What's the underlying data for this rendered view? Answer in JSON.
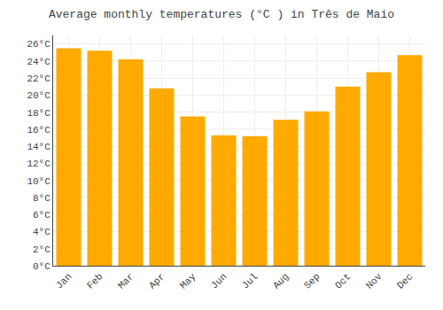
{
  "chart_data": {
    "type": "bar",
    "title": "Average monthly temperatures (°C ) in Três de Maio",
    "categories": [
      "Jan",
      "Feb",
      "Mar",
      "Apr",
      "May",
      "Jun",
      "Jul",
      "Aug",
      "Sep",
      "Oct",
      "Nov",
      "Dec"
    ],
    "values": [
      25.5,
      25.2,
      24.2,
      20.8,
      17.5,
      15.3,
      15.2,
      17.1,
      18.1,
      21.0,
      22.7,
      24.7
    ],
    "color": "#FFAA00",
    "ylim": [
      0,
      27
    ],
    "yticks": [
      {
        "value": 0,
        "label": "0°C"
      },
      {
        "value": 2,
        "label": "2°C"
      },
      {
        "value": 4,
        "label": "4°C"
      },
      {
        "value": 6,
        "label": "6°C"
      },
      {
        "value": 8,
        "label": "8°C"
      },
      {
        "value": 10,
        "label": "10°C"
      },
      {
        "value": 12,
        "label": "12°C"
      },
      {
        "value": 14,
        "label": "14°C"
      },
      {
        "value": 16,
        "label": "16°C"
      },
      {
        "value": 18,
        "label": "18°C"
      },
      {
        "value": 20,
        "label": "20°C"
      },
      {
        "value": 22,
        "label": "22°C"
      },
      {
        "value": 24,
        "label": "24°C"
      },
      {
        "value": 26,
        "label": "26°C"
      }
    ],
    "grid": true
  }
}
